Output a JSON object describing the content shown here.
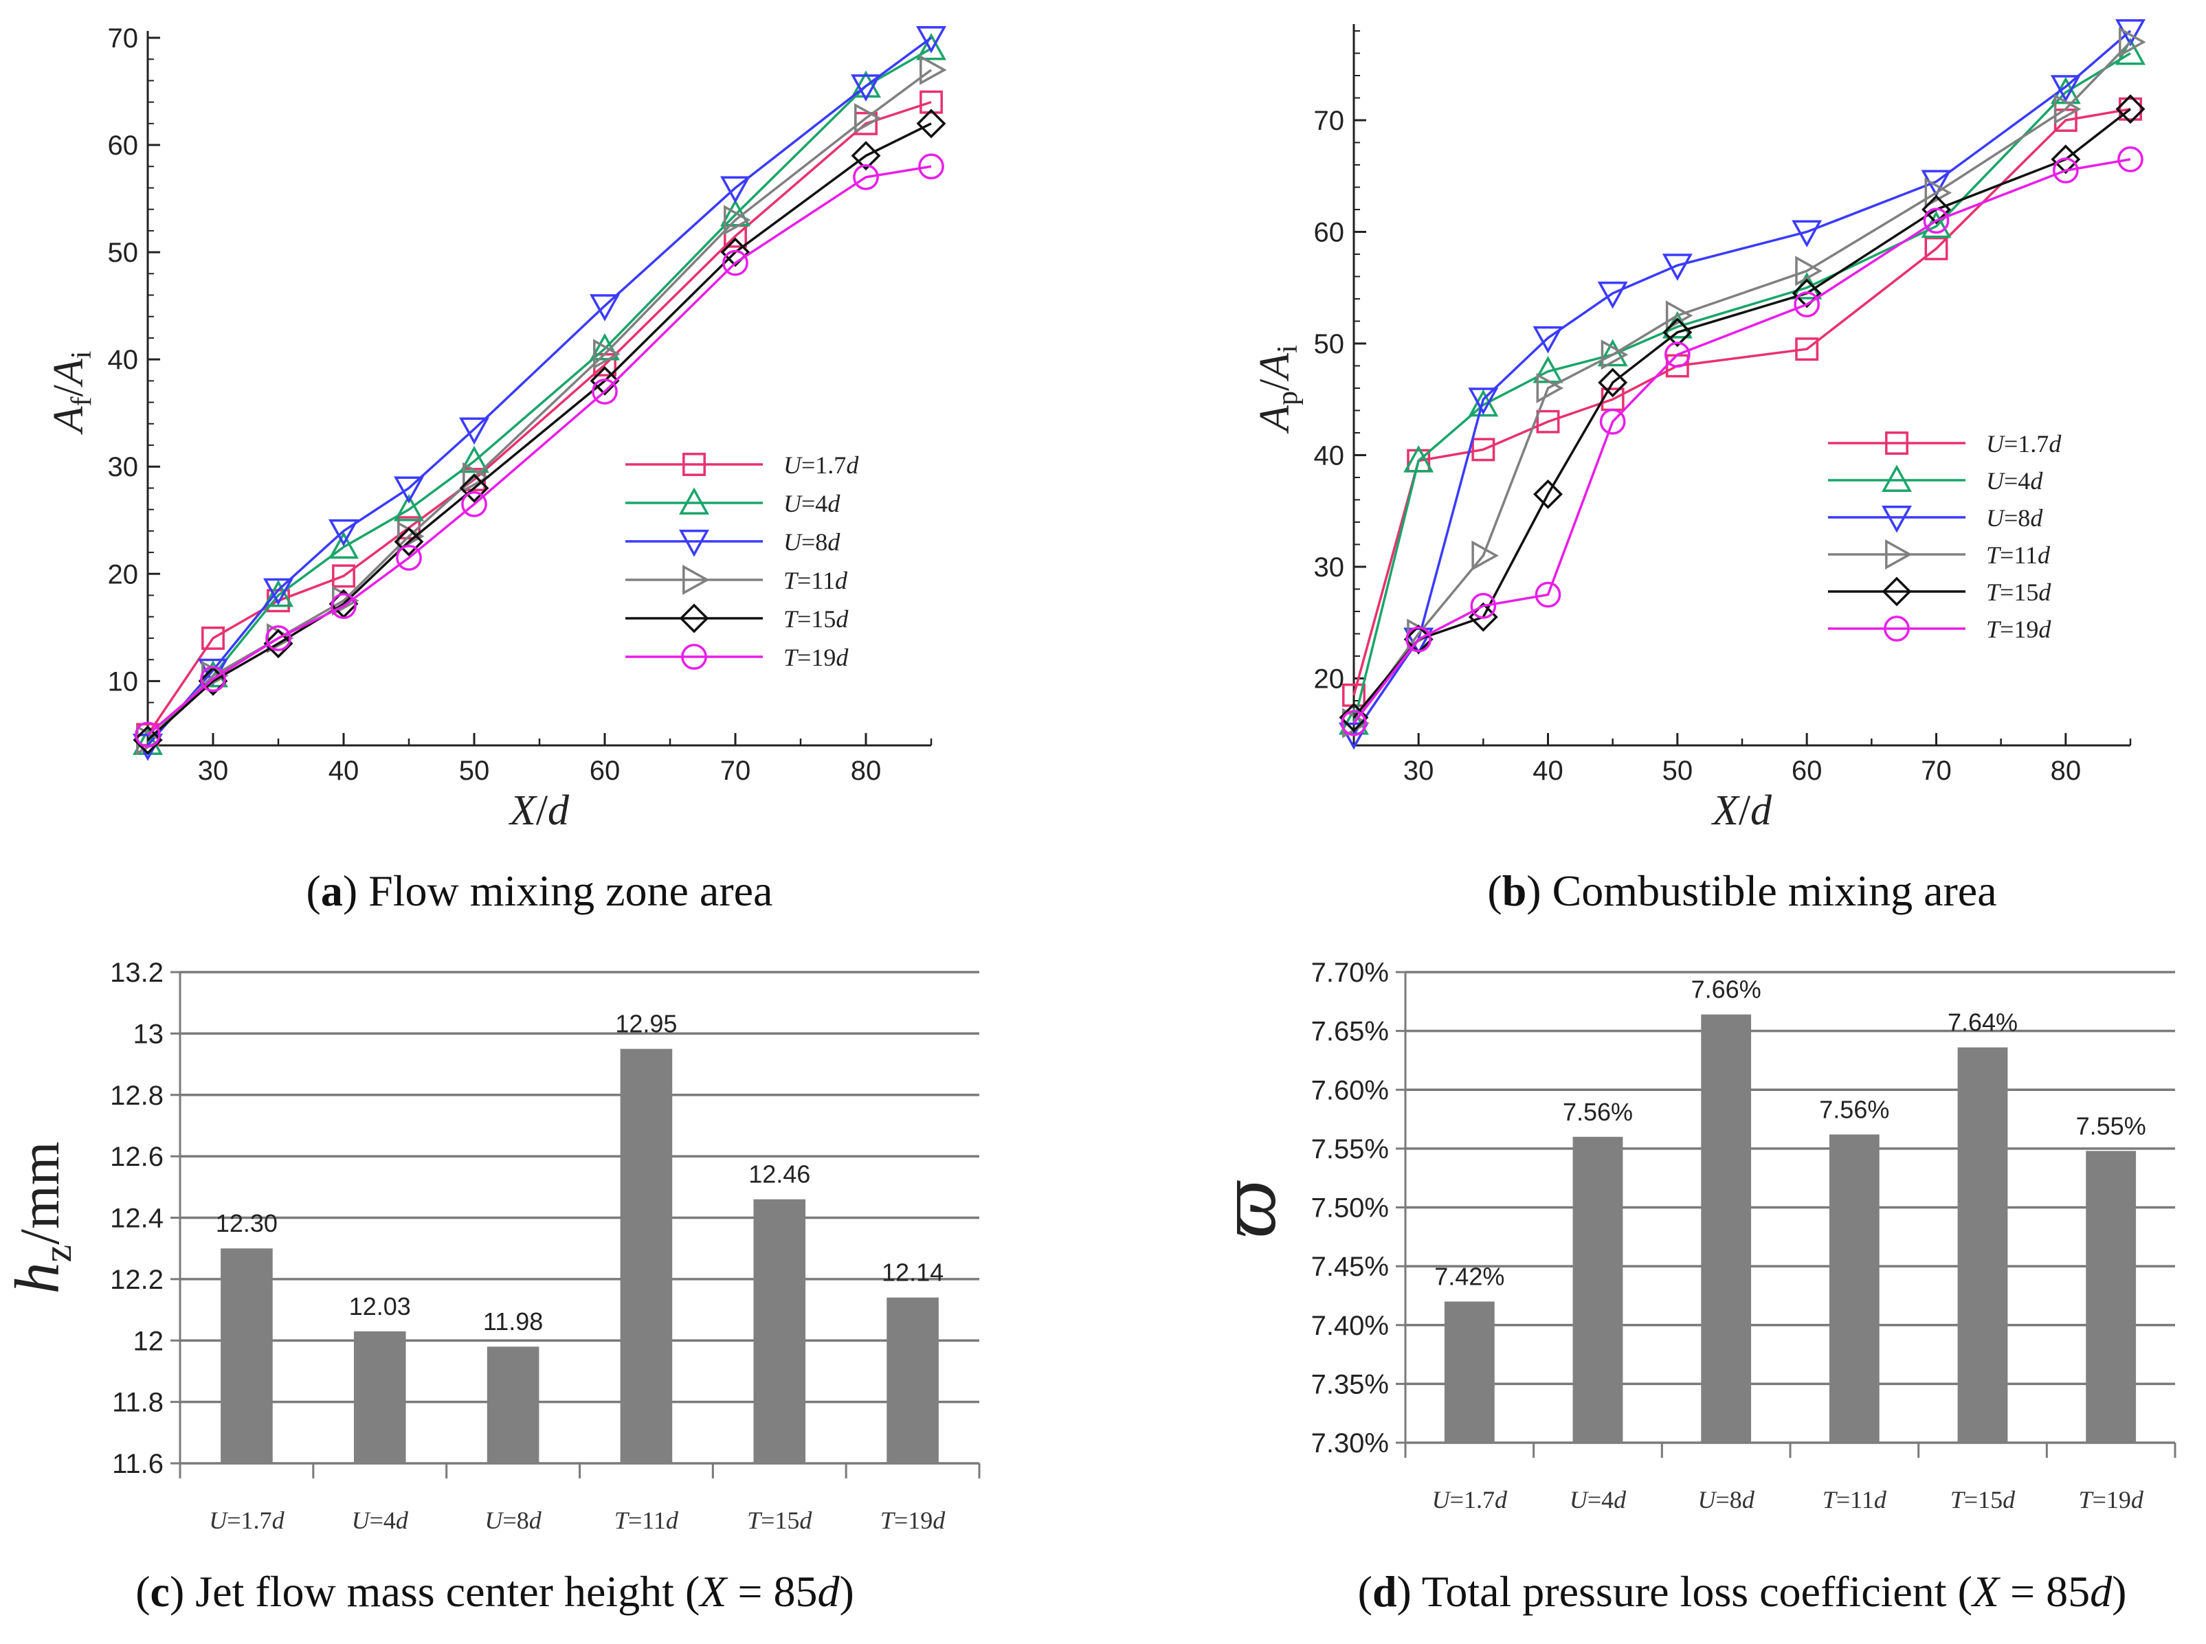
{
  "chart_data": [
    {
      "id": "a",
      "type": "line",
      "caption": {
        "letter": "a",
        "text": "Flow mixing zone area"
      },
      "ylabel": "Af/Ai",
      "xlabel": "X/d",
      "xlim": [
        25,
        85
      ],
      "ylim": [
        4,
        70
      ],
      "xticks": [
        30,
        40,
        50,
        60,
        70,
        80
      ],
      "yticks": [
        10,
        20,
        30,
        40,
        50,
        60,
        70
      ],
      "x": [
        25,
        30,
        35,
        40,
        45,
        50,
        60,
        70,
        80,
        85
      ],
      "series": [
        {
          "name": "U=1.7d",
          "color": "#e8326e",
          "marker": "square",
          "values": [
            5,
            14,
            17.5,
            19.8,
            24.3,
            28.8,
            39.5,
            51.5,
            62,
            64
          ]
        },
        {
          "name": "U=4d",
          "color": "#1aa56a",
          "marker": "triangle-up",
          "values": [
            4.2,
            10.5,
            18,
            22.5,
            26,
            30.5,
            41,
            53.5,
            65.5,
            69
          ]
        },
        {
          "name": "U=8d",
          "color": "#3b3bff",
          "marker": "triangle-down",
          "values": [
            4,
            11,
            18.5,
            24,
            28,
            33.5,
            45,
            56,
            65.5,
            70
          ]
        },
        {
          "name": "T=11d",
          "color": "#808080",
          "marker": "triangle-right",
          "values": [
            4.5,
            10.5,
            14,
            17.5,
            23.5,
            29,
            40.5,
            53,
            62.5,
            67
          ]
        },
        {
          "name": "T=15d",
          "color": "#111111",
          "marker": "diamond",
          "values": [
            4.5,
            10,
            13.5,
            17.2,
            23,
            28,
            38,
            50,
            59,
            62
          ]
        },
        {
          "name": "T=19d",
          "color": "#e81ee8",
          "marker": "circle",
          "values": [
            5,
            10.2,
            14,
            17,
            21.5,
            26.5,
            37,
            49,
            57,
            58
          ]
        }
      ]
    },
    {
      "id": "b",
      "type": "line",
      "caption": {
        "letter": "b",
        "text": "Combustible mixing area"
      },
      "ylabel": "Ap/Ai",
      "xlabel": "X/d",
      "xlim": [
        25,
        85
      ],
      "ylim": [
        14,
        78
      ],
      "xticks": [
        30,
        40,
        50,
        60,
        70,
        80
      ],
      "yticks": [
        20,
        30,
        40,
        50,
        60,
        70
      ],
      "x": [
        25,
        30,
        35,
        40,
        45,
        50,
        60,
        70,
        80,
        85
      ],
      "series": [
        {
          "name": "U=1.7d",
          "color": "#e8326e",
          "marker": "square",
          "values": [
            18.5,
            39.5,
            40.5,
            43,
            45,
            48,
            49.5,
            58.5,
            70,
            71
          ]
        },
        {
          "name": "U=4d",
          "color": "#1aa56a",
          "marker": "triangle-up",
          "values": [
            16,
            39.5,
            44.5,
            47.5,
            49,
            51.5,
            55,
            60.5,
            72.5,
            76
          ]
        },
        {
          "name": "U=8d",
          "color": "#3b3bff",
          "marker": "triangle-down",
          "values": [
            15,
            23.5,
            45,
            50.5,
            54.5,
            57,
            60,
            64.5,
            73,
            78
          ]
        },
        {
          "name": "T=11d",
          "color": "#808080",
          "marker": "triangle-right",
          "values": [
            16,
            24,
            31,
            46,
            49,
            52.5,
            56.5,
            63.5,
            71,
            77
          ]
        },
        {
          "name": "T=15d",
          "color": "#111111",
          "marker": "diamond",
          "values": [
            16.5,
            23.5,
            25.5,
            36.5,
            46.5,
            51,
            54.5,
            62,
            66.5,
            71
          ]
        },
        {
          "name": "T=19d",
          "color": "#e81ee8",
          "marker": "circle",
          "values": [
            16,
            23.5,
            26.5,
            27.5,
            43,
            49,
            53.5,
            61,
            65.5,
            66.5
          ]
        }
      ]
    },
    {
      "id": "c",
      "type": "bar",
      "caption": {
        "letter": "c",
        "text_before": "Jet flow mass center height (",
        "var_x": "X",
        "eq": " = 85",
        "var_d": "d",
        "text_after": ")"
      },
      "ylabel_main": "h",
      "ylabel_sub": "z",
      "ylabel_unit": "/mm",
      "ylim": [
        11.6,
        13.2
      ],
      "yticks": [
        11.6,
        11.8,
        12.0,
        12.2,
        12.4,
        12.6,
        12.8,
        13.0,
        13.2
      ],
      "ytick_labels": [
        "11.6",
        "11.8",
        "12",
        "12.2",
        "12.4",
        "12.6",
        "12.8",
        "13",
        "13.2"
      ],
      "categories": [
        "U=1.7d",
        "U=4d",
        "U=8d",
        "T=11d",
        "T=15d",
        "T=19d"
      ],
      "values": [
        12.3,
        12.03,
        11.98,
        12.95,
        12.46,
        12.14
      ],
      "value_labels": [
        "12.30",
        "12.03",
        "11.98",
        "12.95",
        "12.46",
        "12.14"
      ],
      "bar_color": "#808080"
    },
    {
      "id": "d",
      "type": "bar",
      "caption": {
        "letter": "d",
        "text_before": "Total pressure loss coefficient (",
        "var_x": "X",
        "eq": " = 85",
        "var_d": "d",
        "text_after": ")"
      },
      "ylabel": "ϖ",
      "ylim": [
        7.3,
        7.7
      ],
      "yticks": [
        7.3,
        7.35,
        7.4,
        7.45,
        7.5,
        7.55,
        7.6,
        7.65,
        7.7
      ],
      "ytick_labels": [
        "7.30%",
        "7.35%",
        "7.40%",
        "7.45%",
        "7.50%",
        "7.55%",
        "7.60%",
        "7.65%",
        "7.70%"
      ],
      "categories": [
        "U=1.7d",
        "U=4d",
        "U=8d",
        "T=11d",
        "T=15d",
        "T=19d"
      ],
      "values": [
        7.42,
        7.56,
        7.664,
        7.562,
        7.636,
        7.548
      ],
      "value_labels": [
        "7.42%",
        "7.56%",
        "7.66%",
        "7.56%",
        "7.64%",
        "7.55%"
      ],
      "bar_color": "#808080"
    }
  ]
}
